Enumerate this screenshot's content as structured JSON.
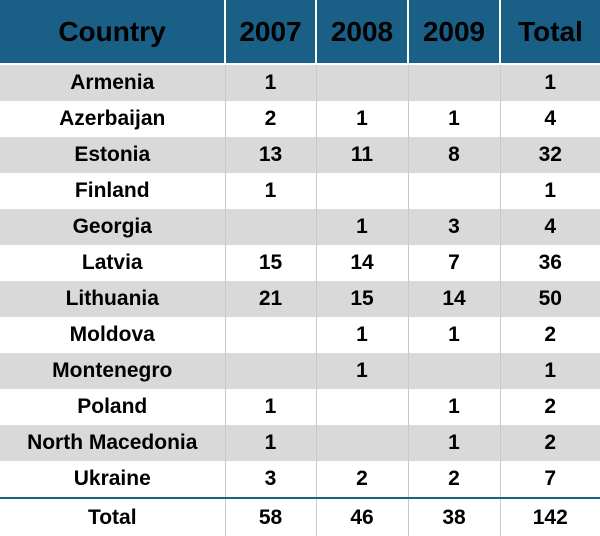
{
  "table": {
    "header": [
      "Country",
      "2007",
      "2008",
      "2009",
      "Total"
    ],
    "rows": [
      [
        "Armenia",
        "1",
        "",
        "",
        "1"
      ],
      [
        "Azerbaijan",
        "2",
        "1",
        "1",
        "4"
      ],
      [
        "Estonia",
        "13",
        "11",
        "8",
        "32"
      ],
      [
        "Finland",
        "1",
        "",
        "",
        "1"
      ],
      [
        "Georgia",
        "",
        "1",
        "3",
        "4"
      ],
      [
        "Latvia",
        "15",
        "14",
        "7",
        "36"
      ],
      [
        "Lithuania",
        "21",
        "15",
        "14",
        "50"
      ],
      [
        "Moldova",
        "",
        "1",
        "1",
        "2"
      ],
      [
        "Montenegro",
        "",
        "1",
        "",
        "1"
      ],
      [
        "Poland",
        "1",
        "",
        "1",
        "2"
      ],
      [
        "North Macedonia",
        "1",
        "",
        "1",
        "2"
      ],
      [
        "Ukraine",
        "3",
        "2",
        "2",
        "7"
      ]
    ],
    "total": [
      "Total",
      "58",
      "46",
      "38",
      "142"
    ]
  },
  "colors": {
    "header_bg": "#1a5f86",
    "band_gray": "#d9d9d9",
    "band_white": "#ffffff",
    "text": "#000000"
  }
}
